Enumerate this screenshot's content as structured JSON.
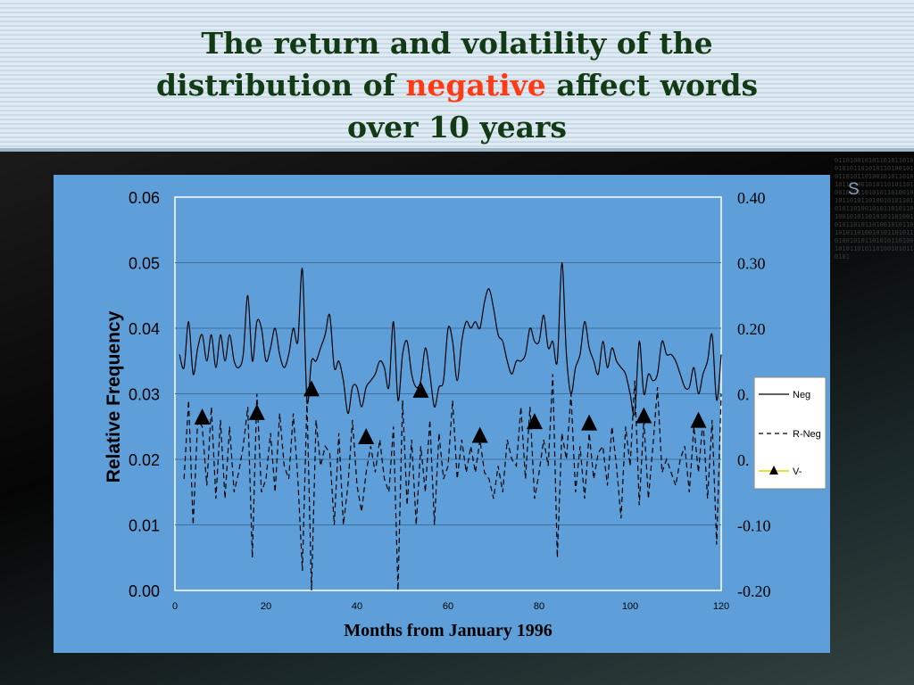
{
  "slide": {
    "title_part1": "The return and volatility of the",
    "title_part2": "distribution of",
    "title_highlight": "negative",
    "title_part3": "affect words",
    "title_part4": "over 10 years",
    "highlight_color": "#ff3a14",
    "title_color": "#123a14",
    "panel_color": "#5f9fd9",
    "decor_letter": "S",
    "binary_text": "0110100101011010110100101011010101101001010110101101001010110101011010010101101011010010101101010110100101011010110100101011010101101001010110101101001010110101011010010101101011010010101101010110100101011010110100101011010101101001010110101101001010110101"
  },
  "chart_data": {
    "type": "line",
    "xlabel": "Months from January 1996",
    "ylabel": "Relative Frequency",
    "xlim": [
      0,
      120
    ],
    "x_ticks": [
      "0",
      "20",
      "40",
      "60",
      "80",
      "100",
      "120"
    ],
    "ylim_left": [
      0,
      0.06
    ],
    "y_ticks_left": [
      "0.00",
      "0.01",
      "0.02",
      "0.03",
      "0.04",
      "0.05",
      "0.06"
    ],
    "ylim_right": [
      -0.2,
      0.4
    ],
    "y_ticks_right": [
      "-0.20",
      "-0.10",
      "0.",
      "0.",
      "0.20",
      "0.30",
      "0.40"
    ],
    "gridlines": "horizontal",
    "legend_position": "right",
    "series": [
      {
        "name": "Neg",
        "axis": "left",
        "style": "solid",
        "x": [
          1,
          2,
          3,
          4,
          5,
          6,
          7,
          8,
          9,
          10,
          11,
          12,
          13,
          14,
          15,
          16,
          17,
          18,
          19,
          20,
          21,
          22,
          23,
          24,
          25,
          26,
          27,
          28,
          29,
          30,
          31,
          32,
          33,
          34,
          35,
          36,
          37,
          38,
          39,
          40,
          41,
          42,
          43,
          44,
          45,
          46,
          47,
          48,
          49,
          50,
          51,
          52,
          53,
          54,
          55,
          56,
          57,
          58,
          59,
          60,
          61,
          62,
          63,
          64,
          65,
          66,
          67,
          68,
          69,
          70,
          71,
          72,
          73,
          74,
          75,
          76,
          77,
          78,
          79,
          80,
          81,
          82,
          83,
          84,
          85,
          86,
          87,
          88,
          89,
          90,
          91,
          92,
          93,
          94,
          95,
          96,
          97,
          98,
          99,
          100,
          101,
          102,
          103,
          104,
          105,
          106,
          107,
          108,
          109,
          110,
          111,
          112,
          113,
          114,
          115,
          116,
          117,
          118,
          119,
          120
        ],
        "values": [
          0.036,
          0.034,
          0.041,
          0.033,
          0.037,
          0.039,
          0.035,
          0.039,
          0.034,
          0.039,
          0.035,
          0.039,
          0.035,
          0.034,
          0.036,
          0.045,
          0.035,
          0.041,
          0.04,
          0.035,
          0.037,
          0.04,
          0.036,
          0.034,
          0.036,
          0.04,
          0.038,
          0.049,
          0.029,
          0.035,
          0.035,
          0.037,
          0.039,
          0.042,
          0.034,
          0.035,
          0.032,
          0.027,
          0.031,
          0.031,
          0.028,
          0.031,
          0.032,
          0.033,
          0.035,
          0.034,
          0.031,
          0.041,
          0.029,
          0.036,
          0.038,
          0.033,
          0.031,
          0.032,
          0.037,
          0.033,
          0.028,
          0.031,
          0.032,
          0.04,
          0.038,
          0.032,
          0.038,
          0.041,
          0.04,
          0.041,
          0.04,
          0.044,
          0.046,
          0.043,
          0.039,
          0.038,
          0.035,
          0.033,
          0.035,
          0.035,
          0.036,
          0.04,
          0.038,
          0.038,
          0.042,
          0.037,
          0.038,
          0.035,
          0.05,
          0.036,
          0.03,
          0.034,
          0.036,
          0.041,
          0.037,
          0.035,
          0.033,
          0.038,
          0.034,
          0.037,
          0.035,
          0.034,
          0.033,
          0.03,
          0.027,
          0.038,
          0.03,
          0.033,
          0.032,
          0.033,
          0.038,
          0.036,
          0.036,
          0.035,
          0.033,
          0.031,
          0.031,
          0.034,
          0.03,
          0.033,
          0.035,
          0.039,
          0.029,
          0.036
        ]
      },
      {
        "name": "R-Neg",
        "axis": "right",
        "style": "dashed",
        "x": [
          2,
          3,
          4,
          5,
          6,
          7,
          8,
          9,
          10,
          11,
          12,
          13,
          14,
          15,
          16,
          17,
          18,
          19,
          20,
          21,
          22,
          23,
          24,
          25,
          26,
          27,
          28,
          29,
          30,
          31,
          32,
          33,
          34,
          35,
          36,
          37,
          38,
          39,
          40,
          41,
          42,
          43,
          44,
          45,
          46,
          47,
          48,
          49,
          50,
          51,
          52,
          53,
          54,
          55,
          56,
          57,
          58,
          59,
          60,
          61,
          62,
          63,
          64,
          65,
          66,
          67,
          68,
          69,
          70,
          71,
          72,
          73,
          74,
          75,
          76,
          77,
          78,
          79,
          80,
          81,
          82,
          83,
          84,
          85,
          86,
          87,
          88,
          89,
          90,
          91,
          92,
          93,
          94,
          95,
          96,
          97,
          98,
          99,
          100,
          101,
          102,
          103,
          104,
          105,
          106,
          107,
          108,
          109,
          110,
          111,
          112,
          113,
          114,
          115,
          116,
          117,
          118,
          119,
          120
        ],
        "values": [
          -0.03,
          0.09,
          -0.1,
          0.06,
          0.05,
          -0.04,
          0.08,
          -0.06,
          0.06,
          -0.06,
          0.05,
          -0.05,
          -0.02,
          0.02,
          0.08,
          -0.15,
          0.1,
          -0.05,
          -0.03,
          0.04,
          -0.05,
          0.07,
          -0.01,
          -0.03,
          0.07,
          -0.03,
          -0.17,
          0.09,
          -0.2,
          0.06,
          -0.01,
          0.02,
          0.01,
          -0.1,
          0.04,
          -0.1,
          -0.04,
          0.06,
          -0.04,
          -0.08,
          -0.02,
          0.02,
          -0.02,
          0.03,
          -0.03,
          -0.05,
          0.05,
          -0.2,
          0.09,
          -0.07,
          0.03,
          -0.1,
          0.02,
          -0.05,
          0.06,
          -0.1,
          0.04,
          -0.03,
          -0.01,
          0.09,
          -0.03,
          0.03,
          -0.02,
          0.02,
          -0.02,
          0.03,
          -0.02,
          -0.03,
          -0.06,
          -0.01,
          -0.05,
          0.03,
          0.0,
          -0.01,
          0.08,
          -0.03,
          0.08,
          -0.06,
          -0.02,
          0.03,
          -0.01,
          0.13,
          -0.15,
          0.04,
          0.0,
          0.1,
          -0.05,
          0.02,
          -0.06,
          0.04,
          -0.03,
          0.01,
          0.02,
          -0.04,
          0.05,
          -0.01,
          -0.09,
          0.05,
          -0.01,
          0.12,
          -0.07,
          0.06,
          -0.06,
          0.02,
          0.11,
          -0.02,
          0.0,
          -0.02,
          -0.04,
          0.0,
          0.02,
          -0.05,
          0.05,
          -0.02,
          0.06,
          -0.06,
          0.06,
          -0.13,
          0.1
        ]
      },
      {
        "name": "V-",
        "axis": "right",
        "style": "markers",
        "x": [
          6,
          18,
          30,
          42,
          54,
          67,
          79,
          91,
          103,
          115
        ],
        "values": [
          0.064,
          0.071,
          0.107,
          0.034,
          0.105,
          0.036,
          0.057,
          0.055,
          0.066,
          0.059
        ]
      }
    ]
  }
}
